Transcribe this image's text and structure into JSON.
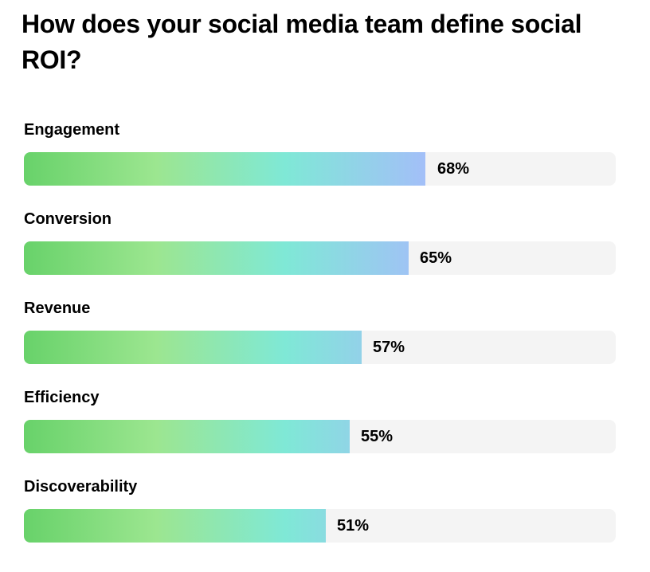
{
  "chart_data": {
    "type": "bar",
    "orientation": "horizontal",
    "title": "How does your social media team define social ROI?",
    "categories": [
      "Engagement",
      "Conversion",
      "Revenue",
      "Efficiency",
      "Discoverability"
    ],
    "values": [
      68,
      65,
      57,
      55,
      51
    ],
    "value_labels": [
      "68%",
      "65%",
      "57%",
      "55%",
      "51%"
    ],
    "xlim": [
      0,
      100
    ],
    "unit": "%",
    "grid": false,
    "colors": {
      "gradient": [
        "#68d26a",
        "#9ce690",
        "#7fe8d6",
        "#a3bff8"
      ],
      "track": "#f4f4f4"
    }
  }
}
